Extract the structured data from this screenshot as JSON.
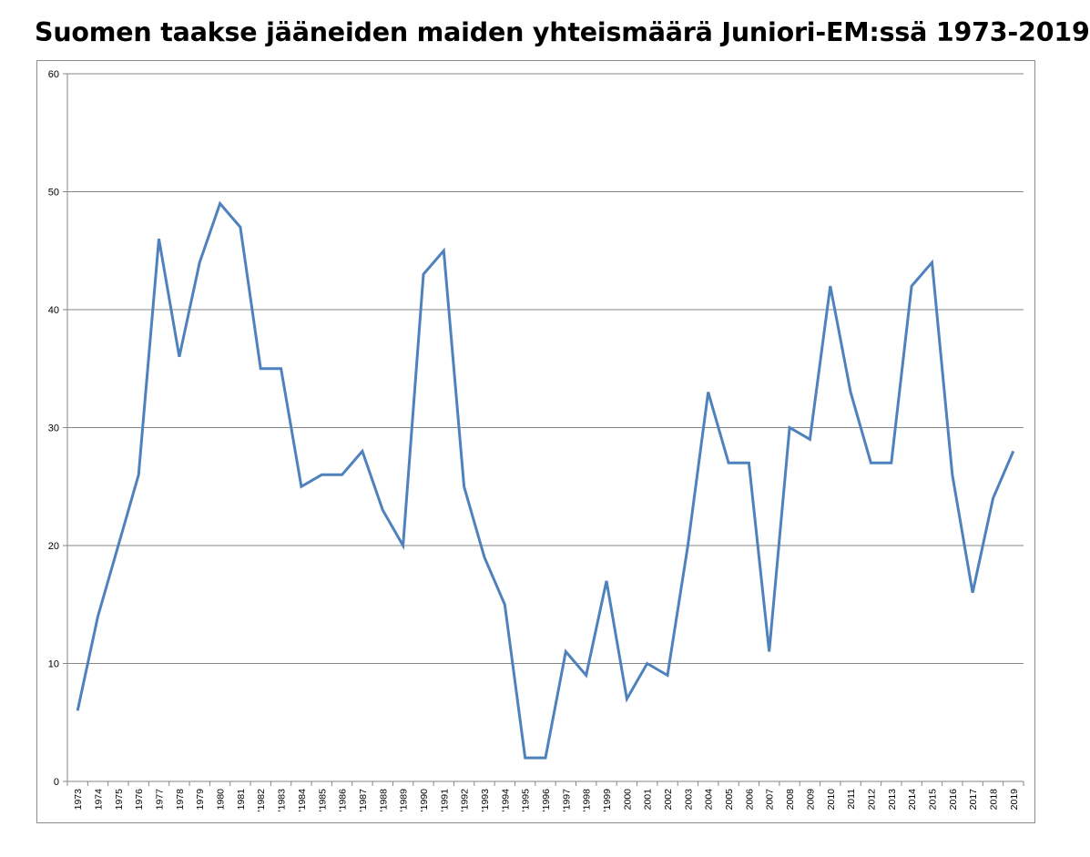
{
  "chart_data": {
    "type": "line",
    "title": "Suomen taakse jääneiden maiden yhteismäärä Juniori-EM:ssä 1973-2019",
    "xlabel": "",
    "ylabel": "",
    "ylim": [
      0,
      60
    ],
    "yticks": [
      "0",
      "10",
      "20",
      "30",
      "40",
      "50",
      "60"
    ],
    "grid": true,
    "legend": "none",
    "categories": [
      "1973",
      "1974",
      "1975",
      "1976",
      "1977",
      "1978",
      "1979",
      "1980",
      "1981",
      "'1982",
      "'1983",
      "'1984",
      "'1985",
      "'1986",
      "'1987",
      "'1988",
      "'1989",
      "'1990",
      "'1991",
      "'1992",
      "'1993",
      "'1994",
      "'1995",
      "'1996",
      "'1997",
      "'1998",
      "'1999",
      "2000",
      "2001",
      "2002",
      "2003",
      "2004",
      "2005",
      "2006",
      "2007",
      "2008",
      "2009",
      "2010",
      "2011",
      "2012",
      "2013",
      "2014",
      "2015",
      "2016",
      "2017",
      "2018",
      "2019"
    ],
    "values": [
      6,
      14,
      20,
      26,
      46,
      36,
      44,
      49,
      47,
      35,
      35,
      25,
      26,
      26,
      28,
      23,
      20,
      43,
      45,
      25,
      19,
      15,
      2,
      2,
      11,
      9,
      17,
      7,
      10,
      9,
      20,
      33,
      27,
      27,
      11,
      30,
      29,
      42,
      33,
      27,
      27,
      42,
      44,
      26,
      16,
      24,
      28
    ],
    "line_color": "#4f81bd",
    "grid_color": "#868686",
    "axis_color": "#868686"
  }
}
